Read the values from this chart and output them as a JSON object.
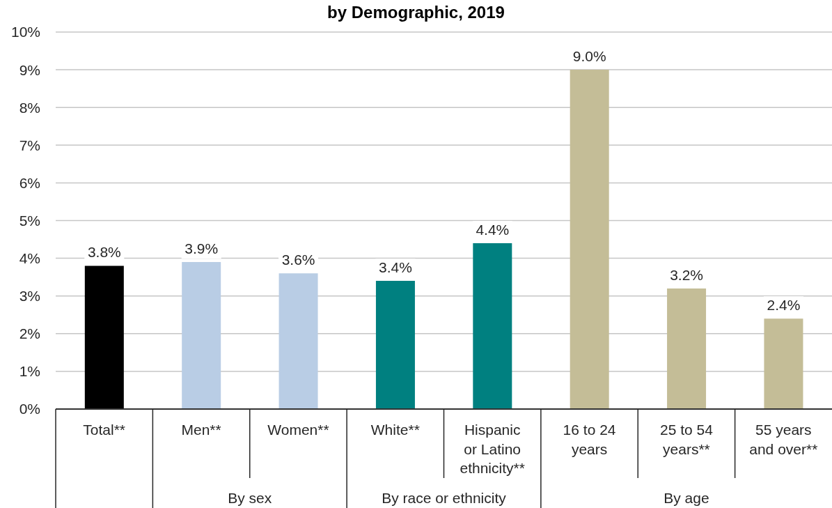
{
  "chart_data": {
    "type": "bar",
    "title": "by Demographic, 2019",
    "categories": [
      "Total**",
      "Men**",
      "Women**",
      "White**",
      "Hispanic or Latino ethnicity**",
      "16 to 24 years",
      "25 to 54 years**",
      "55 years and over**"
    ],
    "values": [
      3.8,
      3.9,
      3.6,
      3.4,
      4.4,
      9.0,
      3.2,
      2.4
    ],
    "colors": [
      "#000000",
      "#b9cde5",
      "#b9cde5",
      "#008080",
      "#008080",
      "#c4bd97",
      "#c4bd97",
      "#c4bd97"
    ],
    "value_labels": [
      "3.8%",
      "3.9%",
      "3.6%",
      "3.4%",
      "4.4%",
      "9.0%",
      "3.2%",
      "2.4%"
    ],
    "annotations": [
      "By sex",
      "By race or ethnicity",
      "By age"
    ],
    "ylim": [
      0,
      10
    ],
    "yticks": [
      {
        "value": 0,
        "label": "0%"
      },
      {
        "value": 1,
        "label": "1%"
      },
      {
        "value": 2,
        "label": "2%"
      },
      {
        "value": 3,
        "label": "3%"
      },
      {
        "value": 4,
        "label": "4%"
      },
      {
        "value": 5,
        "label": "5%"
      },
      {
        "value": 6,
        "label": "6%"
      },
      {
        "value": 7,
        "label": "7%"
      },
      {
        "value": 8,
        "label": "8%"
      },
      {
        "value": 9,
        "label": "9%"
      },
      {
        "value": 10,
        "label": "10%"
      }
    ],
    "grid": "y"
  }
}
